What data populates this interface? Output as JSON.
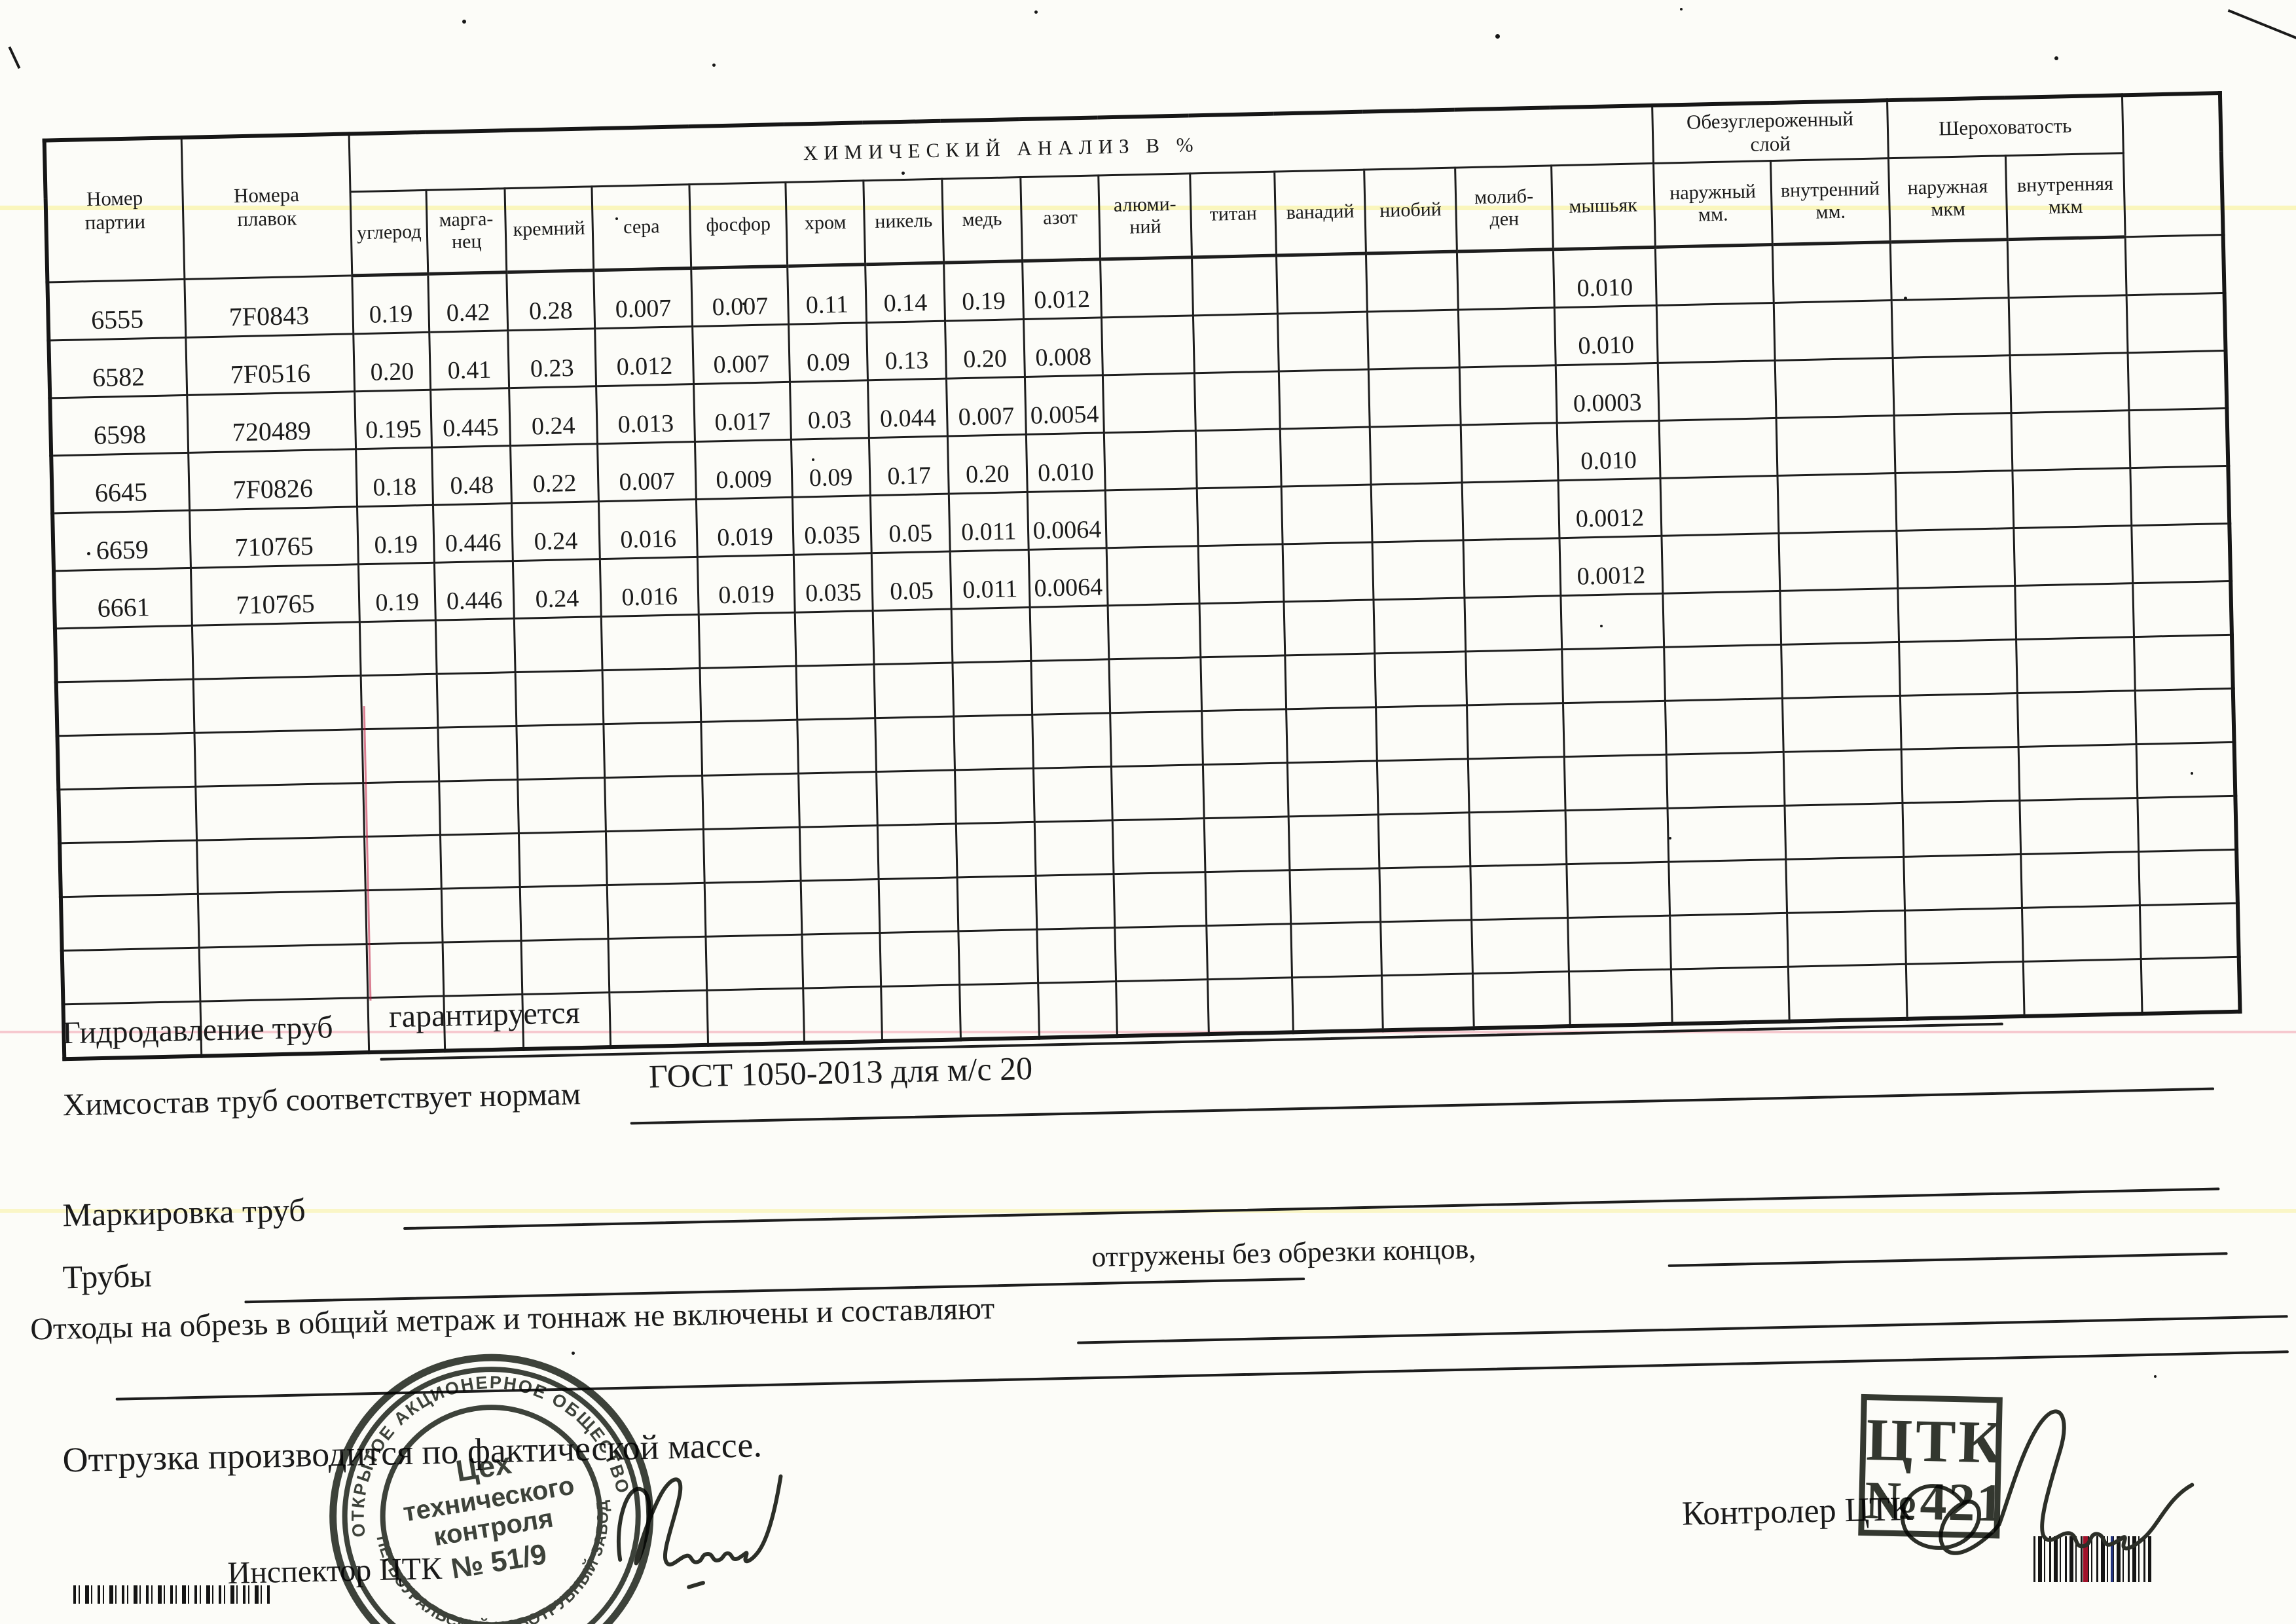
{
  "colors": {
    "ink": "#1b1b1b",
    "stamp_ink": "#2e332b",
    "artifact_yellow": "#f8f08c",
    "artifact_pink": "#f096a5"
  },
  "table": {
    "title": "ХИМИЧЕСКИЙ АНАЛИЗ В %",
    "col_party": "Номер\nпартии",
    "col_melt": "Номера\nплавок",
    "elements": [
      "углерод",
      "марга-\nнец",
      "кремний",
      "сера",
      "фосфор",
      "хром",
      "никель",
      "медь",
      "азот",
      "алюми-\nний",
      "титан",
      "ванадий",
      "ниобий",
      "молиб-\nден",
      "мышьяк"
    ],
    "group_decarb": "Обезуглероженный\nслой",
    "group_rough": "Шероховатость",
    "sub_headers": [
      "наружный\nмм.",
      "внутренний\nмм.",
      "наружная\nмкм",
      "внутренняя\nмкм"
    ],
    "rows": [
      {
        "party": "6555",
        "melt": "7F0843",
        "chem": [
          "0.19",
          "0.42",
          "0.28",
          "0.007",
          "0.007",
          "0.11",
          "0.14",
          "0.19",
          "0.012",
          "",
          "",
          "",
          "",
          ""
        ],
        "arsenic": "0.010"
      },
      {
        "party": "6582",
        "melt": "7F0516",
        "chem": [
          "0.20",
          "0.41",
          "0.23",
          "0.012",
          "0.007",
          "0.09",
          "0.13",
          "0.20",
          "0.008",
          "",
          "",
          "",
          "",
          ""
        ],
        "arsenic": "0.010"
      },
      {
        "party": "6598",
        "melt": "720489",
        "chem": [
          "0.195",
          "0.445",
          "0.24",
          "0.013",
          "0.017",
          "0.03",
          "0.044",
          "0.007",
          "0.0054",
          "",
          "",
          "",
          "",
          ""
        ],
        "arsenic": "0.0003"
      },
      {
        "party": "6645",
        "melt": "7F0826",
        "chem": [
          "0.18",
          "0.48",
          "0.22",
          "0.007",
          "0.009",
          "0.09",
          "0.17",
          "0.20",
          "0.010",
          "",
          "",
          "",
          "",
          ""
        ],
        "arsenic": "0.010"
      },
      {
        "party": "6659",
        "melt": "710765",
        "chem": [
          "0.19",
          "0.446",
          "0.24",
          "0.016",
          "0.019",
          "0.035",
          "0.05",
          "0.011",
          "0.0064",
          "",
          "",
          "",
          "",
          ""
        ],
        "arsenic": "0.0012"
      },
      {
        "party": "6661",
        "melt": "710765",
        "chem": [
          "0.19",
          "0.446",
          "0.24",
          "0.016",
          "0.019",
          "0.035",
          "0.05",
          "0.011",
          "0.0064",
          "",
          "",
          "",
          "",
          ""
        ],
        "arsenic": "0.0012"
      }
    ],
    "empty_rows": 8
  },
  "footer": {
    "line1_label": "Гидродавление труб",
    "line1_value": "гарантируется",
    "line2_label": "Химсостав труб соответствует нормам",
    "line2_value": "ГОСТ 1050-2013 для м/с 20",
    "line3_label": "Маркировка труб",
    "line4_label": "Трубы",
    "line4_note": "отгружены без обрезки концов,",
    "line5_label": "Отходы на обрезь в общий метраж и тоннаж не включены и составляют",
    "shipping_note": "Отгрузка производится по фактической массе.",
    "inspector_label": "Инспектор ЦТК",
    "controller_label": "Контролер ЦТК"
  },
  "stamps": {
    "round": {
      "ring_top": "ОТКРЫТОЕ АКЦИОНЕРНОЕ ОБЩЕСТВО",
      "ring_bottom": "* «ПЕРВОУРАЛЬСКИЙ НОВОТРУБНЫЙ ЗАВОД» *",
      "line1": "Цех",
      "line2": "технического",
      "line3": "контроля",
      "line4": "№ 51/9"
    },
    "rect": {
      "line1": "ЦТК",
      "line2": "№421"
    }
  }
}
